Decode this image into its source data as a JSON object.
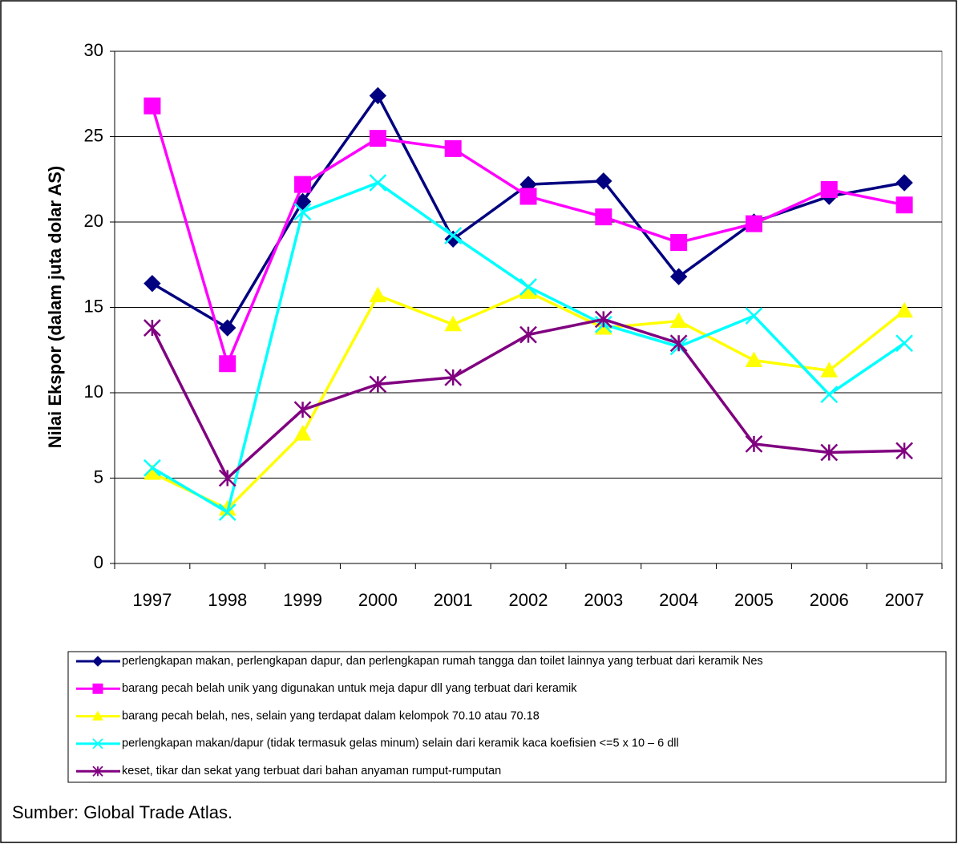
{
  "chart_data": {
    "type": "line",
    "y_label": "Nilai Ekspor (dalam juta dolar AS)",
    "source": "Sumber: Global Trade Atlas.",
    "categories": [
      "1997",
      "1998",
      "1999",
      "2000",
      "2001",
      "2002",
      "2003",
      "2004",
      "2005",
      "2006",
      "2007"
    ],
    "ylim": [
      0,
      30
    ],
    "yticks": [
      0,
      5,
      10,
      15,
      20,
      25,
      30
    ],
    "grid": true,
    "series": [
      {
        "name": "perlengkapan makan, perlengkapan dapur, dan perlengkapan rumah tangga dan toilet lainnya yang terbuat dari keramik Nes",
        "color": "#000080",
        "marker": "diamond",
        "values": [
          16.4,
          13.8,
          21.2,
          27.4,
          19.0,
          22.2,
          22.4,
          16.8,
          20.0,
          21.5,
          22.3
        ]
      },
      {
        "name": "barang pecah belah unik yang digunakan untuk meja dapur dll yang terbuat dari keramik",
        "color": "#ff00ff",
        "marker": "square",
        "values": [
          26.8,
          11.7,
          22.2,
          24.9,
          24.3,
          21.5,
          20.3,
          18.8,
          19.9,
          21.9,
          21.0
        ]
      },
      {
        "name": "barang pecah belah, nes, selain yang terdapat dalam kelompok 70.10 atau 70.18",
        "color": "#ffff00",
        "marker": "triangle",
        "values": [
          5.3,
          3.2,
          7.6,
          15.7,
          14.0,
          15.9,
          13.8,
          14.2,
          11.9,
          11.3,
          14.8
        ]
      },
      {
        "name": "perlengkapan makan/dapur (tidak termasuk gelas minum) selain dari keramik kaca koefisien <=5 x 10 – 6 dll",
        "color": "#00ffff",
        "marker": "x",
        "values": [
          5.6,
          3.0,
          20.6,
          22.3,
          19.2,
          16.2,
          14.0,
          12.7,
          14.5,
          9.9,
          12.9
        ]
      },
      {
        "name": "keset, tikar dan sekat yang terbuat dari bahan anyaman rumput-rumputan",
        "color": "#800080",
        "marker": "asterisk",
        "values": [
          13.8,
          5.0,
          9.0,
          10.5,
          10.9,
          13.4,
          14.3,
          12.9,
          7.0,
          6.5,
          6.6
        ]
      }
    ]
  }
}
